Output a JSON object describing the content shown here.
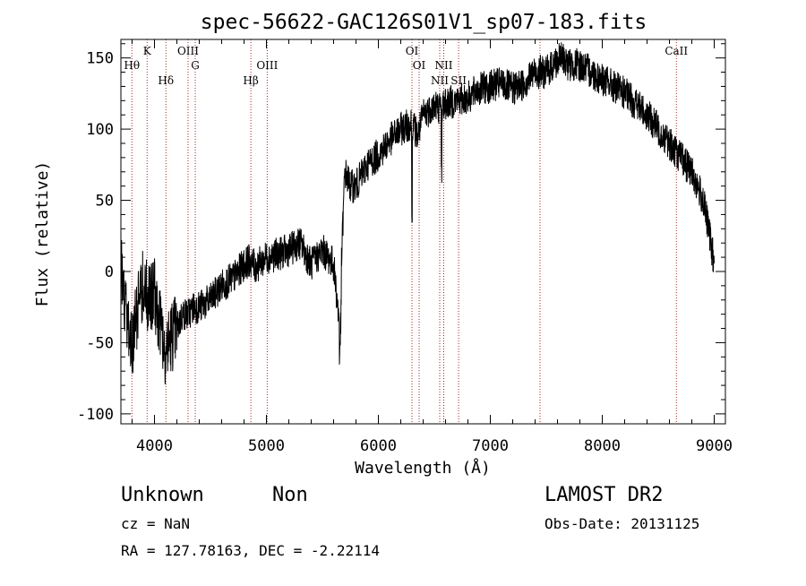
{
  "chart_data": {
    "type": "line",
    "title": "spec-56622-GAC126S01V1_sp07-183.fits",
    "xlabel": "Wavelength (Å)",
    "ylabel": "Flux (relative)",
    "xlim": [
      3700,
      9100
    ],
    "ylim": [
      -107,
      163
    ],
    "xticks": [
      4000,
      5000,
      6000,
      7000,
      8000,
      9000
    ],
    "yticks": [
      -100,
      -50,
      0,
      50,
      100,
      150
    ],
    "minor_x_step": 200,
    "minor_y_step": 10,
    "line_color": "#000000",
    "marker_color": "#aa2222",
    "series": [
      {
        "name": "flux",
        "x": [
          3700,
          3750,
          3800,
          3850,
          3900,
          3950,
          4000,
          4050,
          4100,
          4150,
          4200,
          4250,
          4300,
          4350,
          4400,
          4500,
          4600,
          4700,
          4800,
          4850,
          4900,
          5000,
          5100,
          5200,
          5300,
          5400,
          5500,
          5600,
          5650,
          5700,
          5750,
          5800,
          5900,
          6000,
          6100,
          6200,
          6250,
          6300,
          6350,
          6400,
          6500,
          6550,
          6600,
          6700,
          6800,
          6900,
          7000,
          7100,
          7200,
          7300,
          7400,
          7500,
          7600,
          7650,
          7700,
          7800,
          7900,
          8000,
          8100,
          8200,
          8300,
          8400,
          8500,
          8600,
          8700,
          8800,
          8900,
          8950,
          9000
        ],
        "y": [
          5,
          -30,
          -55,
          -25,
          -10,
          -20,
          -15,
          -35,
          -55,
          -45,
          -40,
          -30,
          -30,
          -25,
          -25,
          -20,
          -10,
          -5,
          5,
          8,
          3,
          10,
          12,
          15,
          20,
          5,
          15,
          5,
          -35,
          70,
          60,
          60,
          75,
          82,
          92,
          100,
          102,
          105,
          95,
          110,
          117,
          115,
          118,
          120,
          122,
          128,
          130,
          132,
          128,
          132,
          140,
          140,
          148,
          150,
          145,
          145,
          140,
          135,
          130,
          125,
          118,
          110,
          100,
          90,
          80,
          70,
          50,
          30,
          5
        ]
      }
    ],
    "noise_amplitude": 12,
    "markers": [
      {
        "label": "Hθ",
        "wavelength": 3798
      },
      {
        "label": "K",
        "wavelength": 3934
      },
      {
        "label": "Hδ",
        "wavelength": 4102
      },
      {
        "label": "OIII",
        "wavelength": 4300
      },
      {
        "label": "G",
        "wavelength": 4364
      },
      {
        "label": "Hβ",
        "wavelength": 4861
      },
      {
        "label": "OIII",
        "wavelength": 5007
      },
      {
        "label": "OI",
        "wavelength": 6300
      },
      {
        "label": "OI",
        "wavelength": 6364
      },
      {
        "label": "NII",
        "wavelength": 6548
      },
      {
        "label": "NII",
        "wavelength": 6584
      },
      {
        "label": "SII",
        "wavelength": 6717
      },
      {
        "label": "",
        "wavelength": 7444
      },
      {
        "label": "CaII",
        "wavelength": 8662
      }
    ],
    "annotations": {
      "object_class": "Unknown",
      "subclass": "Non",
      "survey": "LAMOST DR2",
      "cz": "cz = NaN",
      "obs_date": "Obs-Date: 20131125",
      "coords": "RA = 127.78163, DEC =  -2.22114"
    }
  }
}
